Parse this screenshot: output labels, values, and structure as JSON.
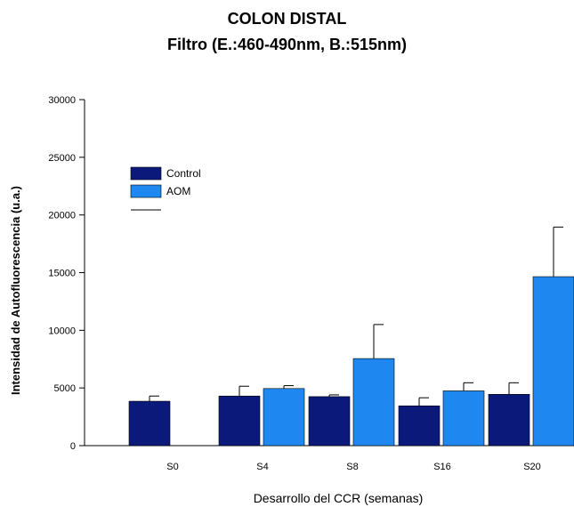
{
  "chart_data": {
    "type": "bar",
    "title": "COLON DISTAL",
    "subtitle": "Filtro (E.:460-490nm, B.:515nm)",
    "xlabel": "Desarrollo del CCR (semanas)",
    "ylabel": "Intensidad de Autofluorescencia (u.a.)",
    "categories": [
      "S0",
      "S4",
      "S8",
      "S16",
      "S20"
    ],
    "ylim": [
      0,
      30000
    ],
    "yticks": [
      0,
      5000,
      10000,
      15000,
      20000,
      25000,
      30000
    ],
    "grid": false,
    "legend_position": "top-left",
    "series": [
      {
        "name": "Control",
        "color": "#0b1a7a",
        "values": [
          3850,
          4300,
          4250,
          3450,
          4450
        ],
        "errors": [
          450,
          850,
          150,
          700,
          1000
        ]
      },
      {
        "name": "AOM",
        "color": "#1e88f0",
        "values": [
          null,
          4950,
          7550,
          4750,
          14650
        ],
        "errors": [
          null,
          250,
          2950,
          700,
          4300
        ]
      }
    ]
  }
}
